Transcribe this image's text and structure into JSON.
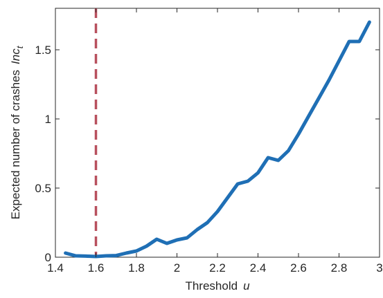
{
  "chart_data": {
    "type": "line",
    "title": "",
    "xlabel": "Threshold",
    "xlabel_var": "u",
    "ylabel": "Expected number of crashes",
    "ylabel_var": "Inc",
    "ylabel_sub": "t",
    "xlim": [
      1.4,
      3.0
    ],
    "ylim": [
      0,
      1.8
    ],
    "x_ticks": [
      1.4,
      1.6,
      1.8,
      2.0,
      2.2,
      2.4,
      2.6,
      2.8,
      3.0
    ],
    "x_tick_labels": [
      "1.4",
      "1.6",
      "1.8",
      "2",
      "2.2",
      "2.4",
      "2.6",
      "2.8",
      "3"
    ],
    "y_ticks": [
      0,
      0.5,
      1.0,
      1.5
    ],
    "y_tick_labels": [
      "0",
      "0.5",
      "1",
      "1.5"
    ],
    "grid": false,
    "vline": {
      "x": 1.6,
      "style": "dashed",
      "color": "#b8505e"
    },
    "series": [
      {
        "color": "#1f6fb5",
        "x": [
          1.45,
          1.5,
          1.55,
          1.6,
          1.65,
          1.7,
          1.75,
          1.8,
          1.85,
          1.9,
          1.95,
          2.0,
          2.05,
          2.1,
          2.15,
          2.2,
          2.25,
          2.3,
          2.35,
          2.4,
          2.45,
          2.5,
          2.55,
          2.6,
          2.65,
          2.7,
          2.75,
          2.8,
          2.85,
          2.9,
          2.95
        ],
        "y": [
          0.03,
          0.01,
          0.008,
          0.005,
          0.01,
          0.012,
          0.03,
          0.045,
          0.08,
          0.13,
          0.1,
          0.125,
          0.14,
          0.2,
          0.25,
          0.33,
          0.43,
          0.53,
          0.55,
          0.61,
          0.72,
          0.7,
          0.77,
          0.89,
          1.02,
          1.15,
          1.28,
          1.42,
          1.56,
          1.56,
          1.7
        ]
      }
    ]
  }
}
